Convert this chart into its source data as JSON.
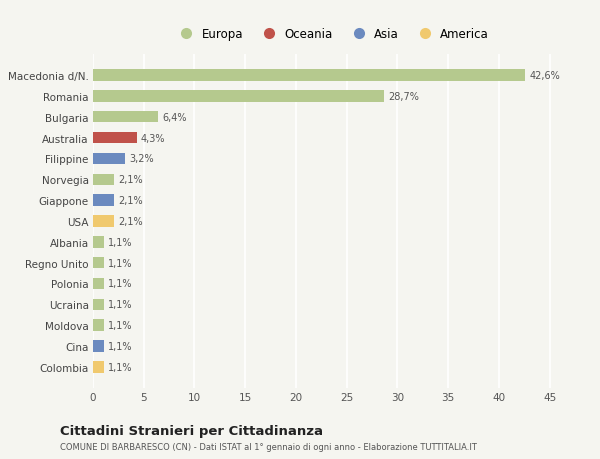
{
  "categories": [
    "Colombia",
    "Cina",
    "Moldova",
    "Ucraina",
    "Polonia",
    "Regno Unito",
    "Albania",
    "USA",
    "Giappone",
    "Norvegia",
    "Filippine",
    "Australia",
    "Bulgaria",
    "Romania",
    "Macedonia d/N."
  ],
  "values": [
    1.1,
    1.1,
    1.1,
    1.1,
    1.1,
    1.1,
    1.1,
    2.1,
    2.1,
    2.1,
    3.2,
    4.3,
    6.4,
    28.7,
    42.6
  ],
  "labels": [
    "1,1%",
    "1,1%",
    "1,1%",
    "1,1%",
    "1,1%",
    "1,1%",
    "1,1%",
    "2,1%",
    "2,1%",
    "2,1%",
    "3,2%",
    "4,3%",
    "6,4%",
    "28,7%",
    "42,6%"
  ],
  "colors": [
    "#f0c96e",
    "#6b8abf",
    "#b5c98e",
    "#b5c98e",
    "#b5c98e",
    "#b5c98e",
    "#b5c98e",
    "#f0c96e",
    "#6b8abf",
    "#b5c98e",
    "#6b8abf",
    "#c0524a",
    "#b5c98e",
    "#b5c98e",
    "#b5c98e"
  ],
  "legend": [
    {
      "label": "Europa",
      "color": "#b5c98e"
    },
    {
      "label": "Oceania",
      "color": "#c0524a"
    },
    {
      "label": "Asia",
      "color": "#6b8abf"
    },
    {
      "label": "America",
      "color": "#f0c96e"
    }
  ],
  "xlim": [
    0,
    47
  ],
  "xticks": [
    0,
    5,
    10,
    15,
    20,
    25,
    30,
    35,
    40,
    45
  ],
  "title": "Cittadini Stranieri per Cittadinanza",
  "subtitle": "COMUNE DI BARBARESCO (CN) - Dati ISTAT al 1° gennaio di ogni anno - Elaborazione TUTTITALIA.IT",
  "background_color": "#f5f5f0",
  "grid_color": "#ffffff",
  "bar_height": 0.55
}
